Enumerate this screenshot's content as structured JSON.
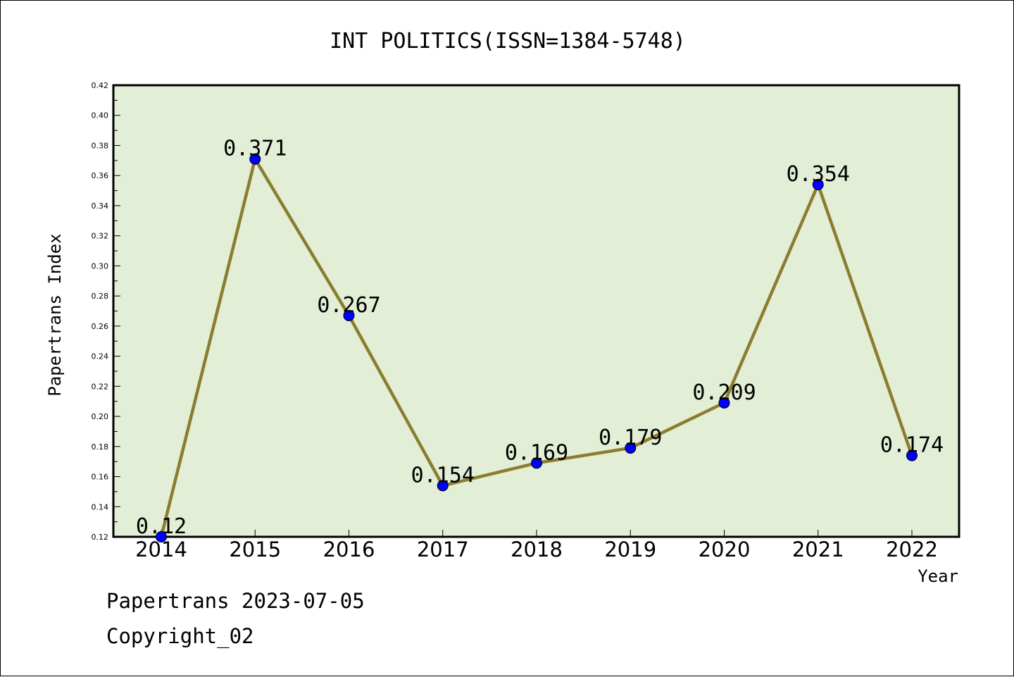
{
  "chart_data": {
    "type": "line",
    "title": "INT POLITICS(ISSN=1384-5748)",
    "xlabel": "Year",
    "ylabel": "Papertrans Index",
    "categories": [
      "2014",
      "2015",
      "2016",
      "2017",
      "2018",
      "2019",
      "2020",
      "2021",
      "2022"
    ],
    "values": [
      0.12,
      0.371,
      0.267,
      0.154,
      0.169,
      0.179,
      0.209,
      0.354,
      0.174
    ],
    "data_labels": [
      "0.12",
      "0.371",
      "0.267",
      "0.154",
      "0.169",
      "0.179",
      "0.209",
      "0.354",
      "0.174"
    ],
    "ylim": [
      0.12,
      0.42
    ],
    "yticks": [
      "0.12",
      "0.14",
      "0.16",
      "0.18",
      "0.20",
      "0.22",
      "0.24",
      "0.26",
      "0.28",
      "0.30",
      "0.32",
      "0.34",
      "0.36",
      "0.38",
      "0.40",
      "0.42"
    ],
    "grid": false,
    "legend": false,
    "colors": {
      "plot_background": "#e2efd6",
      "line": "#8b7d30",
      "marker": "#0000ff"
    }
  },
  "footer": {
    "line1": "Papertrans 2023-07-05",
    "line2": "Copyright_02"
  }
}
